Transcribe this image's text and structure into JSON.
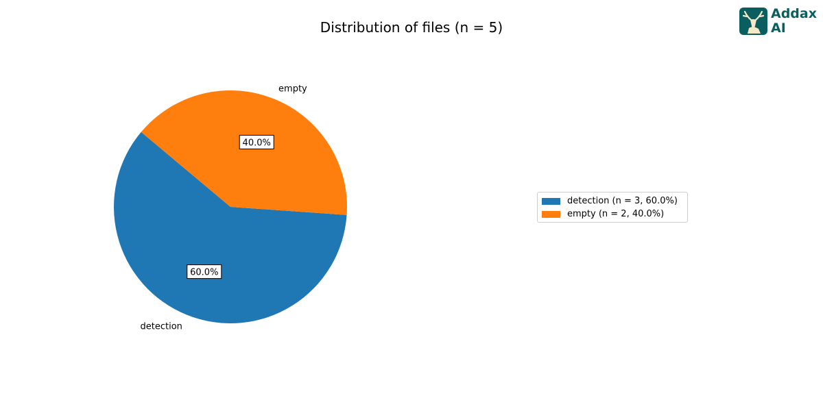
{
  "title": "Distribution of files (n = 5)",
  "logo": {
    "text_line1": "Addax",
    "text_line2": "AI",
    "brand_color": "#0b5e5f"
  },
  "chart_data": {
    "type": "pie",
    "title": "Distribution of files (n = 5)",
    "total": 5,
    "slices": [
      {
        "label": "detection",
        "value": 3,
        "percent_label": "60.0%",
        "color": "#1f77b4"
      },
      {
        "label": "empty",
        "value": 2,
        "percent_label": "40.0%",
        "color": "#ff7f0e"
      }
    ],
    "legend": {
      "placement": "right",
      "entries": [
        "detection (n = 3, 60.0%)",
        "empty (n = 2, 40.0%)"
      ]
    }
  }
}
